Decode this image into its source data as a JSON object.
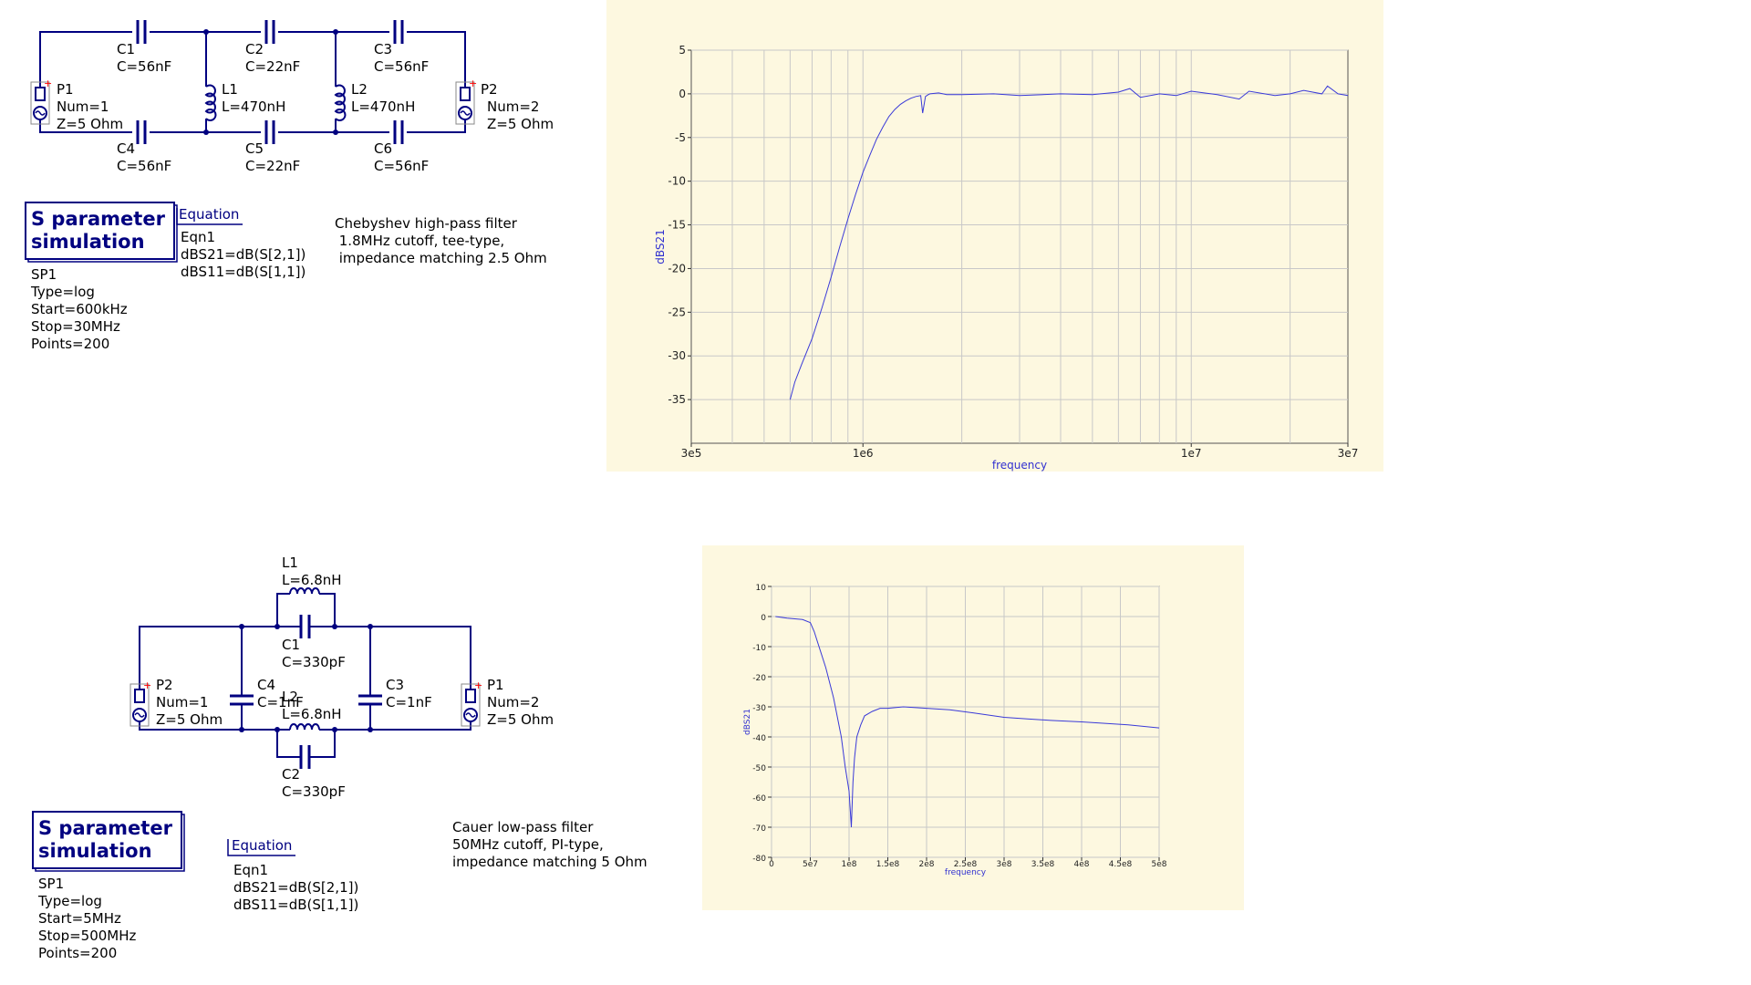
{
  "schematic1": {
    "components": {
      "C1": {
        "name": "C1",
        "value": "C=56nF"
      },
      "C2": {
        "name": "C2",
        "value": "C=22nF"
      },
      "C3": {
        "name": "C3",
        "value": "C=56nF"
      },
      "C4": {
        "name": "C4",
        "value": "C=56nF"
      },
      "C5": {
        "name": "C5",
        "value": "C=22nF"
      },
      "C6": {
        "name": "C6",
        "value": "C=56nF"
      },
      "L1": {
        "name": "L1",
        "value": "L=470nH"
      },
      "L2": {
        "name": "L2",
        "value": "L=470nH"
      },
      "P1": {
        "name": "P1",
        "num": "Num=1",
        "z": "Z=5 Ohm"
      },
      "P2": {
        "name": "P2",
        "num": "Num=2",
        "z": "Z=5 Ohm"
      }
    },
    "sim": {
      "title1": "S parameter",
      "title2": "simulation",
      "name": "SP1",
      "type": "Type=log",
      "start": "Start=600kHz",
      "stop": "Stop=30MHz",
      "points": "Points=200"
    },
    "equation": {
      "title": "Equation",
      "name": "Eqn1",
      "line1": "dBS21=dB(S[2,1])",
      "line2": "dBS11=dB(S[1,1])"
    },
    "note": {
      "line1": "Chebyshev high-pass filter",
      "line2": " 1.8MHz cutoff, tee-type,",
      "line3": " impedance matching 2.5 Ohm"
    }
  },
  "schematic2": {
    "components": {
      "L1": {
        "name": "L1",
        "value": "L=6.8nH"
      },
      "C1": {
        "name": "C1",
        "value": "C=330pF"
      },
      "L2": {
        "name": "L2",
        "value": "L=6.8nH"
      },
      "C2": {
        "name": "C2",
        "value": "C=330pF"
      },
      "C3": {
        "name": "C3",
        "value": "C=1nF"
      },
      "C4": {
        "name": "C4",
        "value": "C=1nF"
      },
      "P2": {
        "name": "P2",
        "num": "Num=1",
        "z": "Z=5 Ohm"
      },
      "P1": {
        "name": "P1",
        "num": "Num=2",
        "z": "Z=5 Ohm"
      }
    },
    "sim": {
      "title1": "S parameter",
      "title2": "simulation",
      "name": "SP1",
      "type": "Type=log",
      "start": "Start=5MHz",
      "stop": "Stop=500MHz",
      "points": "Points=200"
    },
    "equation": {
      "title": "Equation",
      "name": "Eqn1",
      "line1": "dBS21=dB(S[2,1])",
      "line2": "dBS11=dB(S[1,1])"
    },
    "note": {
      "line1": "Cauer low-pass filter",
      "line2": "50MHz cutoff, PI-type,",
      "line3": "impedance matching 5 Ohm"
    }
  },
  "colors": {
    "wire": "#000080",
    "plot_bg": "#fdf8e0",
    "trace": "#3a3ad8",
    "grid": "#c8c8c8",
    "port_plus": "#ff0000"
  },
  "chart_data": [
    {
      "type": "line",
      "xscale": "log",
      "xlabel": "frequency",
      "ylabel": "dBS21",
      "xlim": [
        300000,
        30000000
      ],
      "ylim": [
        -40,
        5
      ],
      "xticks": [
        "3e5",
        "1e6",
        "1e7",
        "3e7"
      ],
      "yticks": [
        "5",
        "0",
        "-5",
        "-10",
        "-15",
        "-20",
        "-25",
        "-30",
        "-35"
      ],
      "grid": true,
      "series": [
        {
          "x": [
            600000,
            620000,
            650000,
            700000,
            750000,
            800000,
            850000,
            900000,
            950000,
            1000000,
            1050000,
            1100000,
            1150000,
            1200000,
            1250000,
            1300000,
            1350000,
            1400000,
            1450000,
            1500000,
            1520000,
            1550000,
            1580000,
            1600000,
            1700000,
            1800000,
            2000000,
            2500000,
            3000000,
            4000000,
            5000000,
            6000000,
            6500000,
            7000000,
            8000000,
            9000000,
            10000000,
            12000000,
            14000000,
            15000000,
            18000000,
            20000000,
            22000000,
            25000000,
            26000000,
            28000000,
            30000000
          ],
          "y": [
            -35,
            -33,
            -31,
            -28,
            -24.5,
            -21,
            -17.5,
            -14.3,
            -11.5,
            -9,
            -7,
            -5.2,
            -3.8,
            -2.6,
            -1.8,
            -1.2,
            -0.8,
            -0.5,
            -0.3,
            -0.2,
            -2.2,
            -0.3,
            -0.1,
            0,
            0.1,
            -0.1,
            -0.1,
            0,
            -0.2,
            0,
            -0.1,
            0.2,
            0.6,
            -0.4,
            0,
            -0.2,
            0.3,
            -0.1,
            -0.6,
            0.3,
            -0.2,
            0,
            0.4,
            0,
            0.9,
            0,
            -0.2
          ]
        }
      ]
    },
    {
      "type": "line",
      "xlabel": "frequency",
      "ylabel": "dBS21",
      "xlim": [
        0,
        500000000
      ],
      "ylim": [
        -80,
        10
      ],
      "xticks": [
        "0",
        "5e7",
        "1e8",
        "1.5e8",
        "2e8",
        "2.5e8",
        "3e8",
        "3.5e8",
        "4e8",
        "4.5e8",
        "5e8"
      ],
      "yticks": [
        "10",
        "0",
        "-10",
        "-20",
        "-30",
        "-40",
        "-50",
        "-60",
        "-70",
        "-80"
      ],
      "grid": true,
      "series": [
        {
          "x": [
            5000000,
            20000000,
            40000000,
            50000000,
            55000000,
            60000000,
            70000000,
            80000000,
            90000000,
            95000000,
            100000000,
            103000000,
            105000000,
            107000000,
            110000000,
            115000000,
            120000000,
            130000000,
            140000000,
            150000000,
            170000000,
            200000000,
            230000000,
            260000000,
            300000000,
            330000000,
            360000000,
            400000000,
            430000000,
            460000000,
            500000000
          ],
          "y": [
            0,
            -0.5,
            -1,
            -2,
            -5,
            -9,
            -17,
            -27,
            -40,
            -50,
            -58,
            -70,
            -55,
            -47,
            -40,
            -36,
            -33,
            -31.5,
            -30.5,
            -30.5,
            -30,
            -30.5,
            -31,
            -32,
            -33.5,
            -34,
            -34.5,
            -35,
            -35.5,
            -36,
            -37
          ]
        }
      ]
    }
  ]
}
